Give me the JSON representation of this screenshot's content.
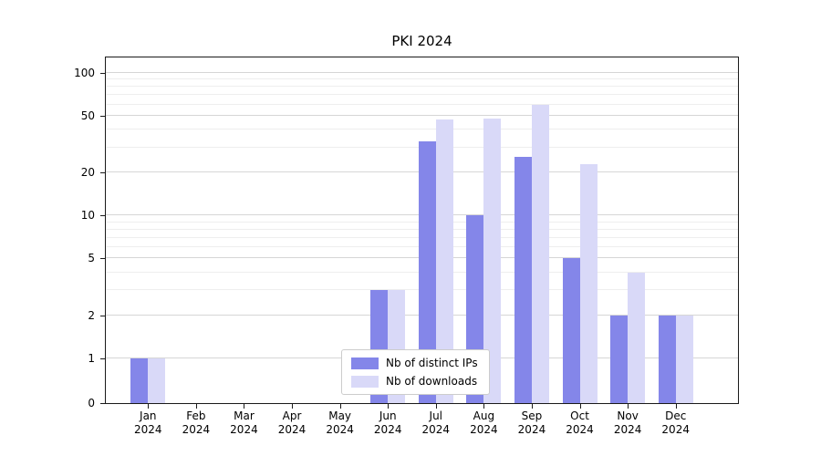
{
  "chart_data": {
    "type": "bar",
    "title": "PKI 2024",
    "xlabel": "",
    "ylabel": "",
    "scale": "symlog",
    "grid": "horizontal",
    "legend_position": "lower center",
    "year_label": "2024",
    "categories": [
      "Jan",
      "Feb",
      "Mar",
      "Apr",
      "May",
      "Jun",
      "Jul",
      "Aug",
      "Sep",
      "Oct",
      "Nov",
      "Dec"
    ],
    "series": [
      {
        "name": "Nb of distinct IPs",
        "key": "distinct-ips",
        "color": "#8486e9",
        "values": [
          1,
          0,
          0,
          0,
          0,
          3,
          33,
          10,
          26,
          5,
          2,
          2
        ]
      },
      {
        "name": "Nb of downloads",
        "key": "downloads",
        "color": "#d9d9f8",
        "values": [
          1,
          0,
          0,
          0,
          0,
          3,
          47,
          48,
          60,
          23,
          4,
          2
        ]
      }
    ],
    "yticks": [
      0,
      1,
      2,
      5,
      10,
      20,
      50,
      100
    ],
    "gridlines_minor": [
      3,
      4,
      6,
      7,
      8,
      9,
      30,
      40,
      60,
      70,
      80,
      90
    ],
    "ylim": [
      0,
      115
    ]
  }
}
